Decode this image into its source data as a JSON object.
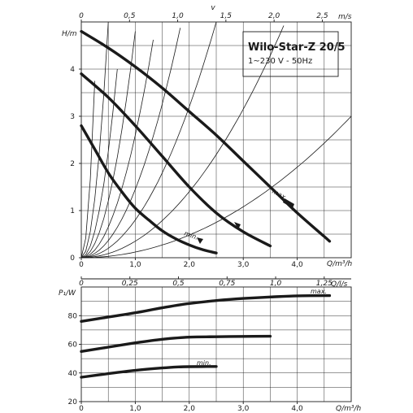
{
  "legend": {
    "model": "Wilo-Star-Z 20/5",
    "supply": "1~230 V - 50Hz"
  },
  "chart_data": [
    {
      "type": "line",
      "title": "",
      "ylabel": "H/m",
      "xlabel": "Q/m³/h",
      "xlim": [
        0,
        5
      ],
      "ylim": [
        0,
        5
      ],
      "x_ticks": [
        "0",
        "1,0",
        "2,0",
        "3,0",
        "4,0"
      ],
      "x_tick_values": [
        0,
        1,
        2,
        3,
        4
      ],
      "y_ticks": [
        "0",
        "1",
        "2",
        "3",
        "4"
      ],
      "y_tick_values": [
        0,
        1,
        2,
        3,
        4
      ],
      "top_axis": {
        "label": "v",
        "unit": "m/s",
        "ticks": [
          "0",
          "0,5",
          "1,0",
          "1,5",
          "2,0",
          "2,5"
        ],
        "tick_values": [
          0,
          0.5,
          1.0,
          1.5,
          2.0,
          2.5
        ],
        "max": 2.8
      },
      "bottom_axis_2": {
        "unit": "Q/l/s",
        "ticks": [
          "0",
          "0,25",
          "0,5",
          "0,75",
          "1,0",
          "1,25"
        ],
        "tick_values": [
          0,
          0.25,
          0.5,
          0.75,
          1.0,
          1.25
        ]
      },
      "series": [
        {
          "name": "max.",
          "x": [
            0,
            0.5,
            1.0,
            1.5,
            2.0,
            2.5,
            3.0,
            3.5,
            4.0,
            4.5,
            4.6
          ],
          "y": [
            4.8,
            4.45,
            4.05,
            3.6,
            3.1,
            2.6,
            2.05,
            1.5,
            0.95,
            0.45,
            0.35
          ]
        },
        {
          "name": "",
          "x": [
            0,
            0.5,
            1.0,
            1.5,
            2.0,
            2.5,
            3.0,
            3.5
          ],
          "y": [
            3.9,
            3.4,
            2.8,
            2.15,
            1.5,
            0.95,
            0.55,
            0.25
          ]
        },
        {
          "name": "min.",
          "x": [
            0,
            0.25,
            0.5,
            0.75,
            1.0,
            1.25,
            1.5,
            1.75,
            2.0,
            2.25,
            2.5
          ],
          "y": [
            2.8,
            2.3,
            1.8,
            1.4,
            1.05,
            0.8,
            0.57,
            0.4,
            0.27,
            0.17,
            0.1
          ]
        }
      ],
      "labels": [
        "max.",
        "min."
      ]
    },
    {
      "type": "line",
      "title": "",
      "ylabel": "P₁/W",
      "xlabel": "Q/m³/h",
      "xlim": [
        0,
        5
      ],
      "ylim": [
        20,
        100
      ],
      "x_ticks": [
        "0",
        "1,0",
        "2,0",
        "3,0",
        "4,0"
      ],
      "x_tick_values": [
        0,
        1,
        2,
        3,
        4
      ],
      "y_ticks": [
        "20",
        "40",
        "60",
        "80"
      ],
      "y_tick_values": [
        20,
        40,
        60,
        80
      ],
      "series": [
        {
          "name": "max.",
          "x": [
            0,
            0.5,
            1.0,
            1.5,
            2.0,
            2.5,
            3.0,
            3.5,
            4.0,
            4.6
          ],
          "y": [
            76,
            79,
            82,
            85.5,
            88.5,
            90.5,
            92,
            93,
            93.8,
            94
          ]
        },
        {
          "name": "",
          "x": [
            0,
            0.5,
            1.0,
            1.5,
            2.0,
            2.5,
            3.0,
            3.5
          ],
          "y": [
            55,
            58,
            61,
            63.5,
            65,
            65.3,
            65.5,
            65.6
          ]
        },
        {
          "name": "min.",
          "x": [
            0,
            0.5,
            1.0,
            1.5,
            1.8,
            2.0,
            2.5
          ],
          "y": [
            37,
            39.5,
            41.8,
            43.5,
            44.2,
            44.4,
            44.5
          ]
        }
      ],
      "labels": [
        "max.",
        "min."
      ]
    }
  ]
}
